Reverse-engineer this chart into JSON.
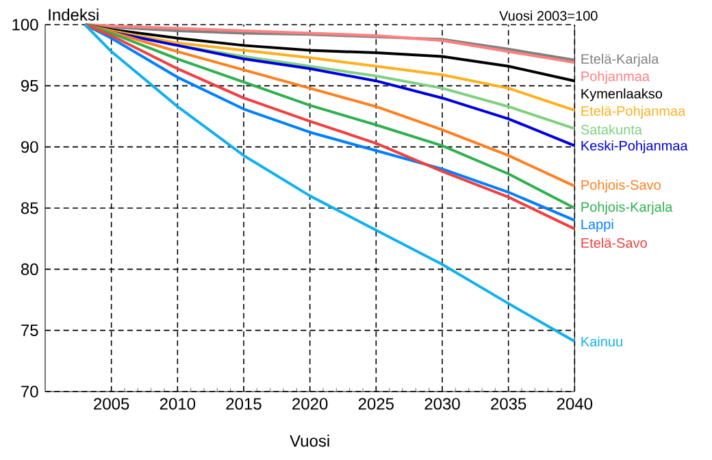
{
  "chart_data": {
    "type": "line",
    "ylabel": "Indeksi",
    "xlabel": "Vuosi",
    "subtitle": "Vuosi 2003=100",
    "x": [
      2003,
      2005,
      2010,
      2015,
      2020,
      2025,
      2030,
      2035,
      2040
    ],
    "xlim": [
      2000,
      2040
    ],
    "xticks": [
      2005,
      2010,
      2015,
      2020,
      2025,
      2030,
      2035,
      2040
    ],
    "ylim": [
      70,
      100
    ],
    "yticks": [
      70,
      75,
      80,
      85,
      90,
      95,
      100
    ],
    "grid": true,
    "marker": "none",
    "line_style": "solid",
    "series": [
      {
        "name": "Etelä-Karjala",
        "color": "#808080",
        "values": [
          100,
          99.8,
          99.5,
          99.3,
          99.2,
          99.0,
          98.8,
          98.0,
          97.1
        ]
      },
      {
        "name": "Pohjanmaa",
        "color": "#ff8080",
        "values": [
          100,
          99.9,
          99.7,
          99.5,
          99.3,
          99.1,
          98.7,
          97.8,
          96.9
        ]
      },
      {
        "name": "Kymenlaakso",
        "color": "#000000",
        "values": [
          100,
          99.6,
          98.9,
          98.3,
          97.9,
          97.7,
          97.4,
          96.6,
          95.4
        ]
      },
      {
        "name": "Etelä-Pohjanmaa",
        "color": "#ffb020",
        "values": [
          100,
          99.5,
          98.5,
          97.9,
          97.3,
          96.6,
          95.9,
          94.8,
          93.0
        ]
      },
      {
        "name": "Satakunta",
        "color": "#80d080",
        "values": [
          100,
          99.4,
          98.3,
          97.4,
          96.6,
          95.8,
          94.8,
          93.3,
          91.5
        ]
      },
      {
        "name": "Keski-Pohjanmaa",
        "color": "#0000e0",
        "values": [
          100,
          99.4,
          98.3,
          97.2,
          96.4,
          95.4,
          94.0,
          92.3,
          90.1
        ]
      },
      {
        "name": "Pohjois-Savo",
        "color": "#ff8020",
        "values": [
          100,
          99.4,
          97.8,
          96.3,
          94.8,
          93.3,
          91.4,
          89.3,
          86.8
        ]
      },
      {
        "name": "Pohjois-Karjala",
        "color": "#30b050",
        "values": [
          100,
          99.3,
          97.2,
          95.3,
          93.4,
          91.8,
          90.1,
          87.8,
          85.0
        ]
      },
      {
        "name": "Lappi",
        "color": "#0080ff",
        "values": [
          100,
          98.9,
          95.7,
          93.1,
          91.2,
          89.7,
          88.2,
          86.3,
          84.0
        ]
      },
      {
        "name": "Etelä-Savo",
        "color": "#f04040",
        "values": [
          100,
          99.1,
          96.4,
          94.0,
          92.1,
          90.3,
          88.0,
          85.9,
          83.3
        ]
      },
      {
        "name": "Kainuu",
        "color": "#10b0f0",
        "values": [
          100,
          97.8,
          93.3,
          89.3,
          86.0,
          83.2,
          80.4,
          77.2,
          74.1
        ]
      }
    ]
  }
}
